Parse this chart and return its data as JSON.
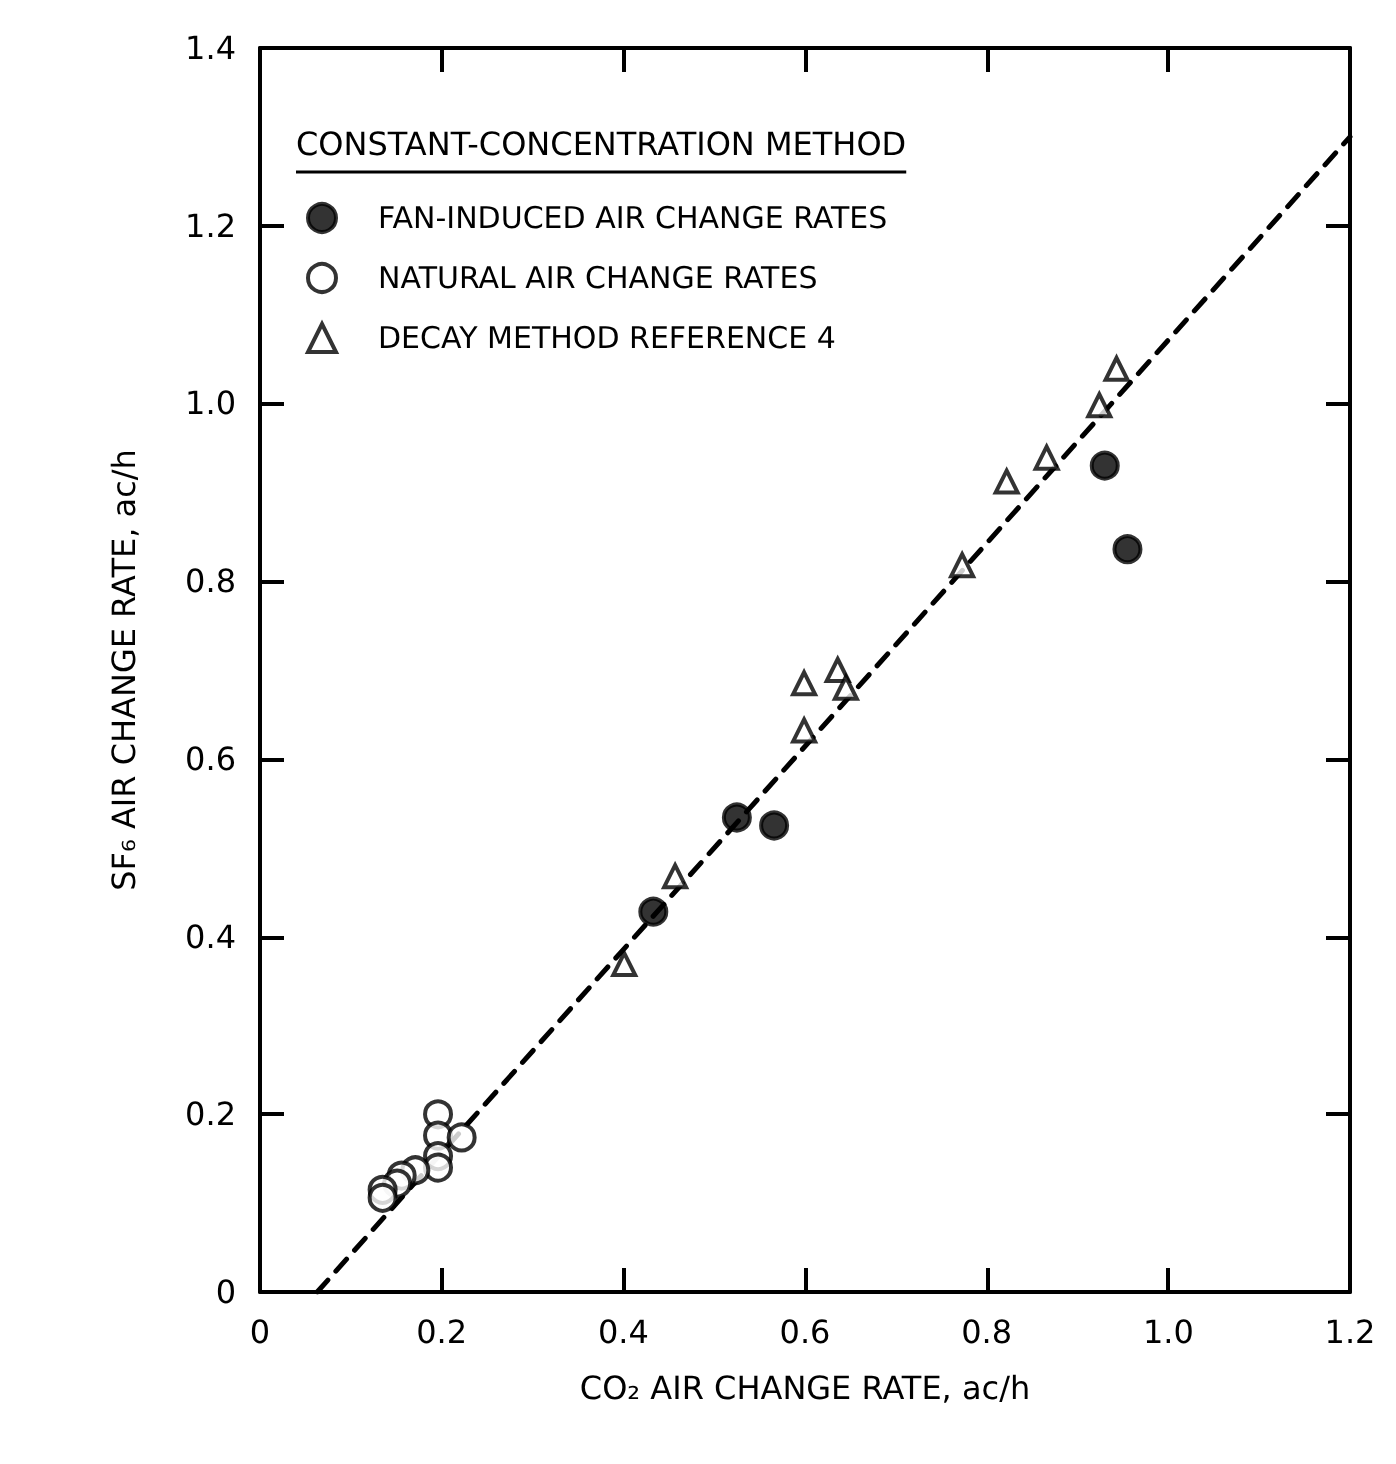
{
  "chart_data": {
    "type": "scatter",
    "xlabel": "CO₂ AIR CHANGE RATE, ac/h",
    "ylabel": "SF₆ AIR CHANGE RATE, ac/h",
    "legend_title": "CONSTANT-CONCENTRATION METHOD",
    "legend": "top left",
    "grid": false,
    "xlim": [
      0,
      1.2
    ],
    "xticks": [
      0,
      0.2,
      0.4,
      0.6,
      0.8,
      {
        "value": 1,
        "label": "1.0"
      },
      1.2
    ],
    "ylim": [
      0,
      1.4
    ],
    "yticks": [
      0,
      0.2,
      0.4,
      0.6,
      0.8,
      {
        "value": 1,
        "label": "1.0"
      },
      1.2,
      1.4
    ],
    "series": [
      {
        "name": "FAN-INDUCED AIR CHANGE RATES",
        "marker": "circle",
        "color": "#000000",
        "x": [
          0.93,
          0.955,
          0.525,
          0.566,
          0.433
        ],
        "values": [
          0.93,
          0.836,
          0.534,
          0.525,
          0.428
        ]
      },
      {
        "name": "NATURAL AIR CHANGE RATES",
        "marker": "circle",
        "color": "#ffffff",
        "x": [
          0.196,
          0.196,
          0.222,
          0.196,
          0.196,
          0.171,
          0.156,
          0.151,
          0.135,
          0.135
        ],
        "values": [
          0.2,
          0.176,
          0.174,
          0.153,
          0.14,
          0.137,
          0.131,
          0.122,
          0.115,
          0.106
        ]
      },
      {
        "name": "DECAY METHOD REFERENCE 4",
        "marker": "triangle",
        "color": "#ffffff",
        "x": [
          0.401,
          0.457,
          0.599,
          0.599,
          0.636,
          0.645,
          0.773,
          0.822,
          0.866,
          0.924,
          0.943
        ],
        "values": [
          0.369,
          0.468,
          0.632,
          0.685,
          0.7,
          0.68,
          0.818,
          0.912,
          0.939,
          0.998,
          1.039
        ]
      },
      {
        "type": "line",
        "marker": "none",
        "line_style": "dashed",
        "color": "#000000",
        "x": [
          0.063,
          1.2
        ],
        "values": [
          0,
          1.3
        ]
      }
    ]
  }
}
